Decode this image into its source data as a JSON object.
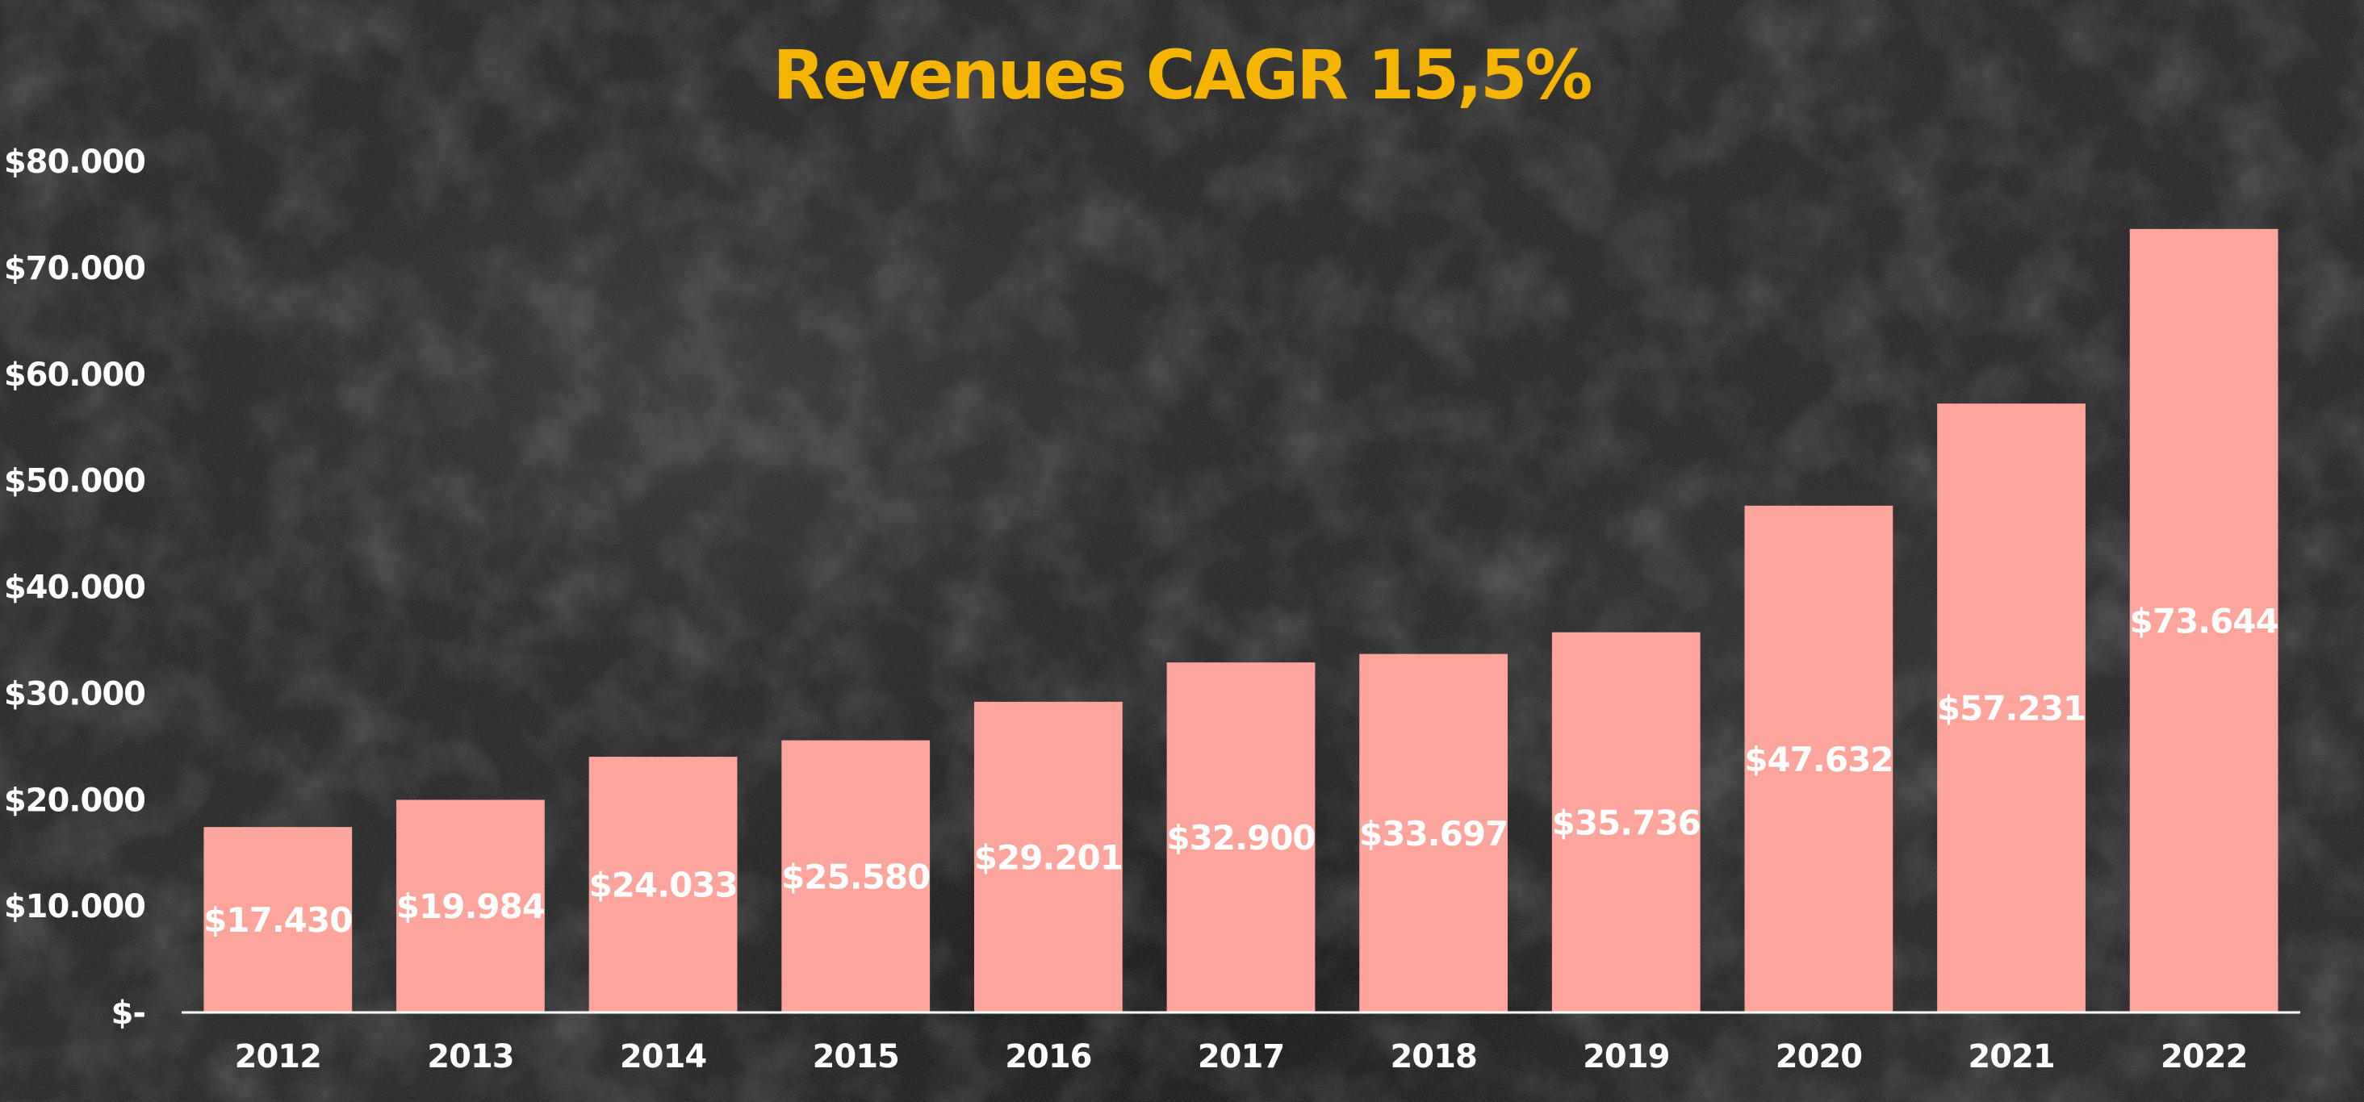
{
  "chart_data": {
    "type": "bar",
    "title": "Revenues CAGR 15,5%",
    "xlabel": "",
    "ylabel": "",
    "categories": [
      "2012",
      "2013",
      "2014",
      "2015",
      "2016",
      "2017",
      "2018",
      "2019",
      "2020",
      "2021",
      "2022"
    ],
    "values": [
      17430,
      19984,
      24033,
      25580,
      29201,
      32900,
      33697,
      35736,
      47632,
      57231,
      73644
    ],
    "data_labels": [
      "$17.430",
      "$19.984",
      "$24.033",
      "$25.580",
      "$29.201",
      "$32.900",
      "$33.697",
      "$35.736",
      "$47.632",
      "$57.231",
      "$73.644"
    ],
    "ylim": [
      0,
      80000
    ],
    "yticks": [
      0,
      10000,
      20000,
      30000,
      40000,
      50000,
      60000,
      70000,
      80000
    ],
    "ytick_labels": [
      "$-",
      "$10.000",
      "$20.000",
      "$30.000",
      "$40.000",
      "$50.000",
      "$60.000",
      "$70.000",
      "$80.000"
    ],
    "grid": false,
    "legend": "none",
    "colors": {
      "bar": "#fda59c",
      "title": "#f5b400",
      "text": "#ffffff",
      "background": "#2a2a2a"
    }
  }
}
